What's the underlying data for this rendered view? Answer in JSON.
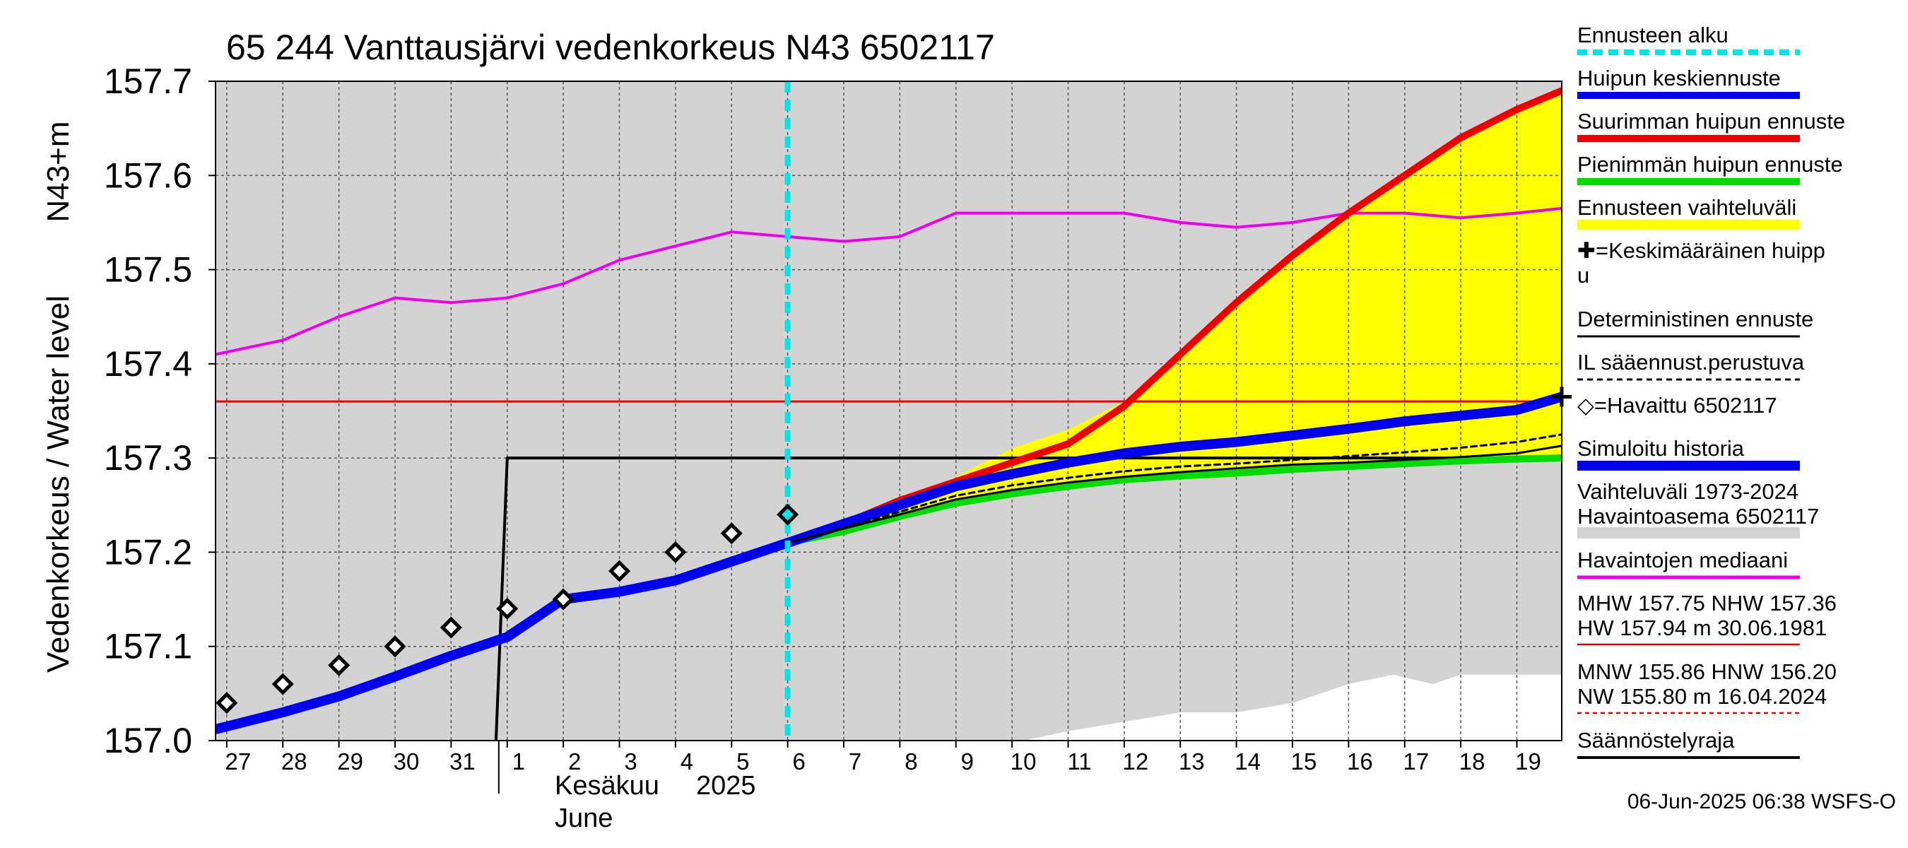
{
  "chart_data": {
    "type": "line",
    "title": "65 244 Vanttausjärvi vedenkorkeus N43 6502117",
    "ylabel_outer": "Vedenkorkeus / Water level",
    "ylabel_inner": "N43+m",
    "ylim": [
      157.0,
      157.7
    ],
    "yticks": [
      "157.0",
      "157.1",
      "157.2",
      "157.3",
      "157.4",
      "157.5",
      "157.6",
      "157.7"
    ],
    "xlim": [
      -0.2,
      23.8
    ],
    "x_tick_labels": [
      "27",
      "28",
      "29",
      "30",
      "31",
      "1",
      "2",
      "3",
      "4",
      "5",
      "6",
      "7",
      "8",
      "9",
      "10",
      "11",
      "12",
      "13",
      "14",
      "15",
      "16",
      "17",
      "18",
      "19"
    ],
    "month_label_fi": "Kesäkuu",
    "year_label": "2025",
    "month_label_en": "June",
    "timestamp": "06-Jun-2025 06:38 WSFS-O",
    "grid": true,
    "forecast_start_x": 10.0,
    "colors": {
      "hist_band": "#d3d3d3",
      "forecast_band": "#ffff00",
      "mean_peak": "#0000ee",
      "max_peak": "#ee0000",
      "min_peak": "#00dd00",
      "median": "#ee00ee",
      "forecast_start": "#00e5e5",
      "reference": "#ee0000"
    },
    "hist_band_lower": {
      "x": [
        14.2,
        15.0,
        16.0,
        17.0,
        18.0,
        19.0,
        20.0,
        20.8,
        21.5,
        22.0,
        23.0,
        23.8
      ],
      "y": [
        157.0,
        157.01,
        157.02,
        157.03,
        157.03,
        157.04,
        157.06,
        157.07,
        157.06,
        157.07,
        157.07,
        157.07
      ]
    },
    "forecast_band": {
      "upper_x": [
        10,
        11,
        12,
        13,
        14,
        15,
        16,
        17,
        18,
        19,
        20,
        21,
        22,
        23,
        23.8
      ],
      "upper_y": [
        157.21,
        157.23,
        157.25,
        157.28,
        157.31,
        157.33,
        157.36,
        157.41,
        157.46,
        157.51,
        157.56,
        157.6,
        157.64,
        157.67,
        157.69
      ],
      "lower_x": [
        10,
        11,
        12,
        13,
        14,
        15,
        16,
        17,
        18,
        19,
        20,
        21,
        22,
        23,
        23.8
      ],
      "lower_y": [
        157.21,
        157.22,
        157.235,
        157.25,
        157.26,
        157.268,
        157.274,
        157.277,
        157.28,
        157.285,
        157.29,
        157.293,
        157.295,
        157.298,
        157.3
      ]
    },
    "series": [
      {
        "name": "Huipun keskiennuste",
        "x": [
          -0.2,
          1,
          2,
          3,
          4,
          5,
          6,
          7,
          8,
          9,
          10,
          11,
          12,
          13,
          14,
          15,
          16,
          17,
          18,
          19,
          20,
          21,
          22,
          23,
          23.8
        ],
        "y": [
          157.012,
          157.03,
          157.047,
          157.068,
          157.09,
          157.11,
          157.15,
          157.158,
          157.17,
          157.19,
          157.21,
          157.23,
          157.25,
          157.27,
          157.283,
          157.295,
          157.305,
          157.312,
          157.317,
          157.324,
          157.331,
          157.339,
          157.345,
          157.351,
          157.365
        ]
      },
      {
        "name": "Suurimman huipun ennuste",
        "x": [
          10,
          11,
          12,
          13,
          14,
          15,
          16,
          17,
          18,
          19,
          20,
          21,
          22,
          23,
          23.8
        ],
        "y": [
          157.21,
          157.23,
          157.255,
          157.275,
          157.295,
          157.315,
          157.355,
          157.41,
          157.465,
          157.515,
          157.56,
          157.6,
          157.64,
          157.67,
          157.69
        ]
      },
      {
        "name": "Pienimmän huipun ennuste",
        "x": [
          10,
          11,
          12,
          13,
          14,
          15,
          16,
          17,
          18,
          19,
          20,
          21,
          22,
          23,
          23.8
        ],
        "y": [
          157.21,
          157.222,
          157.238,
          157.252,
          157.262,
          157.27,
          157.277,
          157.281,
          157.284,
          157.288,
          157.291,
          157.294,
          157.297,
          157.299,
          157.3
        ]
      },
      {
        "name": "Deterministinen ennuste",
        "x": [
          10,
          11,
          12,
          13,
          14,
          15,
          16,
          17,
          18,
          19,
          20,
          21,
          22,
          23,
          23.8
        ],
        "y": [
          157.21,
          157.225,
          157.24,
          157.256,
          157.266,
          157.274,
          157.28,
          157.285,
          157.289,
          157.293,
          157.295,
          157.298,
          157.301,
          157.305,
          157.313
        ]
      },
      {
        "name": "IL sääennust.perustuva",
        "x": [
          10,
          11,
          12,
          13,
          14,
          15,
          16,
          17,
          18,
          19,
          20,
          21,
          22,
          23,
          23.8
        ],
        "y": [
          157.21,
          157.226,
          157.243,
          157.26,
          157.271,
          157.279,
          157.286,
          157.291,
          157.294,
          157.298,
          157.302,
          157.306,
          157.311,
          157.317,
          157.325
        ]
      },
      {
        "name": "Havaintojen mediaani",
        "x": [
          -0.2,
          1,
          2,
          3,
          4,
          5,
          6,
          7,
          8,
          9,
          10,
          11,
          12,
          13,
          14,
          15,
          16,
          17,
          18,
          19,
          20,
          21,
          22,
          23,
          23.8
        ],
        "y": [
          157.41,
          157.425,
          157.45,
          157.47,
          157.465,
          157.47,
          157.485,
          157.51,
          157.525,
          157.54,
          157.535,
          157.53,
          157.535,
          157.56,
          157.56,
          157.56,
          157.56,
          157.55,
          157.545,
          157.55,
          157.56,
          157.56,
          157.555,
          157.56,
          157.565
        ]
      },
      {
        "name": "Säännöstelyraja",
        "x": [
          4.8,
          5.0,
          23.8
        ],
        "y": [
          157.0,
          157.3,
          157.3
        ]
      }
    ],
    "observed": {
      "name": "Havaittu 6502117",
      "x": [
        0,
        1,
        2,
        3,
        4,
        5,
        6,
        7,
        8,
        9,
        10
      ],
      "y": [
        157.04,
        157.06,
        157.08,
        157.1,
        157.12,
        157.14,
        157.15,
        157.18,
        157.2,
        157.22,
        157.24
      ]
    },
    "reference_line": {
      "name": "NHW",
      "y": 157.36
    },
    "legend": {
      "placement": "right",
      "items": [
        {
          "label": "Ennusteen alku",
          "key": "forecast_start",
          "style": "dashed-cyan"
        },
        {
          "label": "Huipun keskiennuste",
          "key": "mean_peak",
          "style": "line-blue"
        },
        {
          "label": "Suurimman huipun ennuste",
          "key": "max_peak",
          "style": "line-red"
        },
        {
          "label": "Pienimmän huipun ennuste",
          "key": "min_peak",
          "style": "line-green"
        },
        {
          "label": "Ennusteen vaihteluväli",
          "key": "forecast_band",
          "style": "band-yellow"
        },
        {
          "label": "✚=Keskimääräinen huipp",
          "label2": "u",
          "key": "mean_peak_marker",
          "style": "none"
        },
        {
          "label": "Deterministinen ennuste",
          "key": "deterministic",
          "style": "line-black-thin"
        },
        {
          "label": "IL sääennust.perustuva",
          "key": "il",
          "style": "dashed-black"
        },
        {
          "label": "◇=Havaittu 6502117",
          "key": "observed",
          "style": "none"
        },
        {
          "label": "Simuloitu historia",
          "key": "simulated",
          "style": "line-blue-thick"
        },
        {
          "label": "Vaihteluväli 1973-2024",
          "label2": " Havaintoasema 6502117",
          "key": "hist_band",
          "style": "band-gray"
        },
        {
          "label": "Havaintojen mediaani",
          "key": "median",
          "style": "line-magenta"
        },
        {
          "label": "MHW 157.75 NHW 157.36",
          "label2": "HW 157.94 m 30.06.1981",
          "key": "hw",
          "style": "line-red-thin"
        },
        {
          "label": "MNW 155.86 HNW 156.20",
          "label2": "NW 155.80 m 16.04.2024",
          "key": "nw",
          "style": "dashed-red"
        },
        {
          "label": "Säännöstelyraja",
          "key": "regulation",
          "style": "line-black"
        }
      ]
    }
  }
}
